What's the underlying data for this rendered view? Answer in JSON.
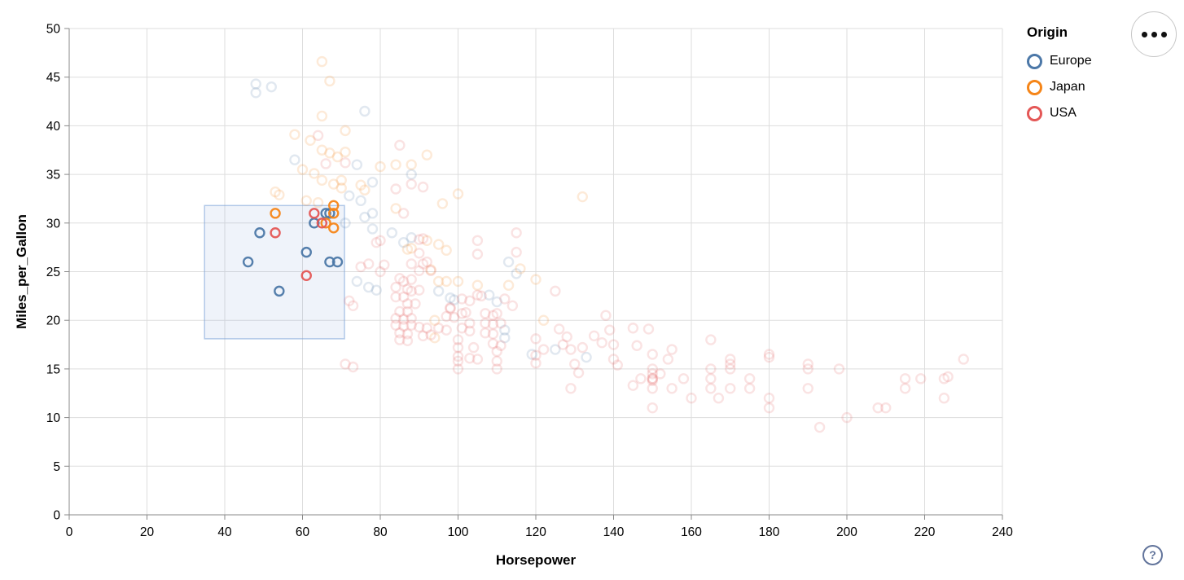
{
  "controls": {
    "menu_button": {
      "icon": "ellipsis"
    },
    "help_button": {
      "label": "?"
    }
  },
  "chart_data": {
    "type": "scatter",
    "title": "",
    "xlabel": "Horsepower",
    "ylabel": "Miles_per_Gallon",
    "xlim": [
      0,
      240
    ],
    "ylim": [
      0,
      50
    ],
    "x_ticks": [
      0,
      20,
      40,
      60,
      80,
      100,
      120,
      140,
      160,
      180,
      200,
      220,
      240
    ],
    "y_ticks": [
      0,
      5,
      10,
      15,
      20,
      25,
      30,
      35,
      40,
      45,
      50
    ],
    "grid": true,
    "axis_colors": {
      "grid": "#dddddd",
      "domain": "#888888",
      "tick": "#888888",
      "label": "#000000"
    },
    "legend": {
      "title": "Origin",
      "position": "top-right",
      "entries": [
        {
          "label": "Europe",
          "color": "#4c78a8"
        },
        {
          "label": "Japan",
          "color": "#f58518"
        },
        {
          "label": "USA",
          "color": "#e45756"
        }
      ]
    },
    "mark": {
      "shape": "open-circle",
      "radius": 5.5,
      "stroke_width": 2.4,
      "selected_opacity": 0.95,
      "unselected_opacity": 0.17
    },
    "brush_selection": {
      "hp_extent": [
        34.8,
        70.8
      ],
      "mpg_extent": [
        18.1,
        31.8
      ],
      "fill": "rgba(120,160,215,0.12)",
      "stroke": "rgba(120,160,215,0.55)"
    },
    "series": [
      {
        "name": "Europe",
        "color": "#4c78a8",
        "selected": [
          [
            46,
            26
          ],
          [
            49,
            29
          ],
          [
            54,
            23
          ],
          [
            61,
            27
          ],
          [
            63,
            30
          ],
          [
            66,
            31
          ],
          [
            67,
            31
          ],
          [
            67,
            26
          ],
          [
            69,
            26
          ]
        ],
        "unselected": [
          [
            48,
            44.3
          ],
          [
            48,
            43.4
          ],
          [
            52,
            44
          ],
          [
            76,
            41.5
          ],
          [
            58,
            36.5
          ],
          [
            74,
            36
          ],
          [
            78,
            34.2
          ],
          [
            88,
            35
          ],
          [
            72,
            32.8
          ],
          [
            75,
            32.3
          ],
          [
            71,
            30
          ],
          [
            76,
            30.6
          ],
          [
            78,
            31
          ],
          [
            78,
            29.4
          ],
          [
            83,
            29
          ],
          [
            86,
            28
          ],
          [
            88,
            28.5
          ],
          [
            74,
            24
          ],
          [
            77,
            23.4
          ],
          [
            79,
            23.1
          ],
          [
            95,
            23
          ],
          [
            98,
            22.3
          ],
          [
            99,
            22.1
          ],
          [
            108,
            22.6
          ],
          [
            110,
            21.9
          ],
          [
            113,
            26
          ],
          [
            115,
            24.8
          ],
          [
            112,
            19
          ],
          [
            112,
            18.2
          ],
          [
            119,
            16.5
          ],
          [
            125,
            17
          ],
          [
            133,
            16.2
          ]
        ]
      },
      {
        "name": "Japan",
        "color": "#f58518",
        "selected": [
          [
            53,
            31
          ],
          [
            66,
            30
          ],
          [
            68,
            31.8
          ],
          [
            68,
            31
          ],
          [
            68,
            29.5
          ]
        ],
        "unselected": [
          [
            65,
            46.6
          ],
          [
            67,
            44.6
          ],
          [
            65,
            41
          ],
          [
            71,
            39.5
          ],
          [
            58,
            39.1
          ],
          [
            62,
            38.5
          ],
          [
            65,
            37.5
          ],
          [
            67,
            37.2
          ],
          [
            69,
            36.8
          ],
          [
            71,
            37.3
          ],
          [
            60,
            35.5
          ],
          [
            63,
            35.1
          ],
          [
            65,
            34.4
          ],
          [
            68,
            34
          ],
          [
            70,
            34.4
          ],
          [
            70,
            33.6
          ],
          [
            75,
            33.9
          ],
          [
            76,
            33.4
          ],
          [
            53,
            33.2
          ],
          [
            54,
            32.9
          ],
          [
            61,
            32.3
          ],
          [
            64,
            32.1
          ],
          [
            80,
            35.8
          ],
          [
            84,
            36
          ],
          [
            88,
            36
          ],
          [
            92,
            37
          ],
          [
            96,
            32
          ],
          [
            100,
            33
          ],
          [
            84,
            31.5
          ],
          [
            87,
            27.3
          ],
          [
            88,
            27.4
          ],
          [
            92,
            28.2
          ],
          [
            95,
            27.8
          ],
          [
            97,
            27.2
          ],
          [
            93,
            25.2
          ],
          [
            95,
            24
          ],
          [
            97,
            24
          ],
          [
            100,
            24
          ],
          [
            105,
            23.6
          ],
          [
            113,
            23.6
          ],
          [
            94,
            20
          ],
          [
            94,
            18.2
          ],
          [
            116,
            25.3
          ],
          [
            120,
            24.2
          ],
          [
            122,
            20
          ],
          [
            132,
            32.7
          ]
        ]
      },
      {
        "name": "USA",
        "color": "#e45756",
        "selected": [
          [
            53,
            29
          ],
          [
            61,
            24.6
          ],
          [
            63,
            31
          ],
          [
            65,
            30
          ]
        ],
        "unselected": [
          [
            64,
            39
          ],
          [
            66,
            36.1
          ],
          [
            71,
            36.2
          ],
          [
            85,
            38
          ],
          [
            84,
            33.5
          ],
          [
            88,
            34
          ],
          [
            91,
            33.7
          ],
          [
            86,
            31
          ],
          [
            79,
            28
          ],
          [
            80,
            28.2
          ],
          [
            90,
            28.3
          ],
          [
            91,
            28.4
          ],
          [
            90,
            26.9
          ],
          [
            92,
            26
          ],
          [
            105,
            28.2
          ],
          [
            105,
            26.8
          ],
          [
            115,
            29
          ],
          [
            115,
            27
          ],
          [
            72,
            22
          ],
          [
            73,
            21.5
          ],
          [
            75,
            25.5
          ],
          [
            77,
            25.8
          ],
          [
            80,
            25
          ],
          [
            81,
            25.7
          ],
          [
            88,
            25.8
          ],
          [
            90,
            25.1
          ],
          [
            91,
            25.8
          ],
          [
            93,
            25.1
          ],
          [
            85,
            24.3
          ],
          [
            86,
            24
          ],
          [
            88,
            24.2
          ],
          [
            84,
            23.4
          ],
          [
            87,
            23.2
          ],
          [
            88,
            23
          ],
          [
            90,
            23.1
          ],
          [
            84,
            22.4
          ],
          [
            86,
            22.4
          ],
          [
            87,
            21.7
          ],
          [
            89,
            21.7
          ],
          [
            85,
            20.9
          ],
          [
            87,
            20.9
          ],
          [
            84,
            20.2
          ],
          [
            86,
            20.1
          ],
          [
            88,
            20.2
          ],
          [
            84,
            19.5
          ],
          [
            86,
            19.4
          ],
          [
            88,
            19.5
          ],
          [
            90,
            19.3
          ],
          [
            85,
            18.7
          ],
          [
            87,
            18.6
          ],
          [
            85,
            18
          ],
          [
            87,
            17.9
          ],
          [
            91,
            18.4
          ],
          [
            92,
            19.2
          ],
          [
            93,
            18.5
          ],
          [
            95,
            19.2
          ],
          [
            97,
            19
          ],
          [
            97,
            20.4
          ],
          [
            99,
            20.3
          ],
          [
            98,
            21.3
          ],
          [
            98,
            21.2
          ],
          [
            101,
            22.2
          ],
          [
            103,
            22
          ],
          [
            101,
            20.7
          ],
          [
            102,
            20.8
          ],
          [
            103,
            19.7
          ],
          [
            101,
            19.2
          ],
          [
            103,
            18.9
          ],
          [
            100,
            18
          ],
          [
            100,
            17.2
          ],
          [
            100,
            16.3
          ],
          [
            100,
            15.8
          ],
          [
            100,
            15
          ],
          [
            103,
            16.1
          ],
          [
            104,
            17.2
          ],
          [
            105,
            16
          ],
          [
            110,
            16.8
          ],
          [
            110,
            15.8
          ],
          [
            110,
            15
          ],
          [
            105,
            22.6
          ],
          [
            106,
            22.5
          ],
          [
            107,
            20.7
          ],
          [
            109,
            20.5
          ],
          [
            110,
            20.7
          ],
          [
            107,
            19.7
          ],
          [
            109,
            19.6
          ],
          [
            111,
            19.7
          ],
          [
            107,
            18.7
          ],
          [
            109,
            18.6
          ],
          [
            109,
            17.6
          ],
          [
            111,
            17.4
          ],
          [
            112,
            22.2
          ],
          [
            114,
            21.5
          ],
          [
            125,
            23
          ],
          [
            126,
            19.1
          ],
          [
            120,
            18.1
          ],
          [
            120,
            16.4
          ],
          [
            120,
            15.6
          ],
          [
            122,
            17
          ],
          [
            127,
            17.5
          ],
          [
            128,
            18.3
          ],
          [
            129,
            17
          ],
          [
            129,
            13
          ],
          [
            130,
            15.5
          ],
          [
            131,
            14.6
          ],
          [
            132,
            17.2
          ],
          [
            135,
            18.4
          ],
          [
            137,
            17.7
          ],
          [
            138,
            20.5
          ],
          [
            139,
            19
          ],
          [
            140,
            17.5
          ],
          [
            140,
            16
          ],
          [
            141,
            15.4
          ],
          [
            145,
            19.2
          ],
          [
            145,
            13.3
          ],
          [
            146,
            17.4
          ],
          [
            147,
            14
          ],
          [
            149,
            19.1
          ],
          [
            150,
            16.5
          ],
          [
            150,
            15
          ],
          [
            150,
            14.5
          ],
          [
            150,
            14
          ],
          [
            150,
            14
          ],
          [
            150,
            13.8
          ],
          [
            150,
            13
          ],
          [
            150,
            11
          ],
          [
            152,
            14.5
          ],
          [
            154,
            16
          ],
          [
            155,
            17
          ],
          [
            155,
            13
          ],
          [
            158,
            14
          ],
          [
            160,
            12
          ],
          [
            165,
            18
          ],
          [
            165,
            15
          ],
          [
            165,
            14
          ],
          [
            165,
            13
          ],
          [
            167,
            12
          ],
          [
            170,
            16
          ],
          [
            170,
            15.5
          ],
          [
            170,
            15
          ],
          [
            170,
            13
          ],
          [
            175,
            14
          ],
          [
            175,
            13
          ],
          [
            180,
            16.5
          ],
          [
            180,
            16.2
          ],
          [
            180,
            12
          ],
          [
            180,
            11
          ],
          [
            190,
            15.5
          ],
          [
            190,
            15
          ],
          [
            190,
            13
          ],
          [
            193,
            9
          ],
          [
            198,
            15
          ],
          [
            200,
            10
          ],
          [
            208,
            11
          ],
          [
            210,
            11
          ],
          [
            215,
            14
          ],
          [
            215,
            13
          ],
          [
            219,
            14
          ],
          [
            225,
            14
          ],
          [
            226,
            14.2
          ],
          [
            225,
            12
          ],
          [
            230,
            16
          ],
          [
            71,
            15.5
          ],
          [
            73,
            15.2
          ]
        ]
      }
    ]
  }
}
